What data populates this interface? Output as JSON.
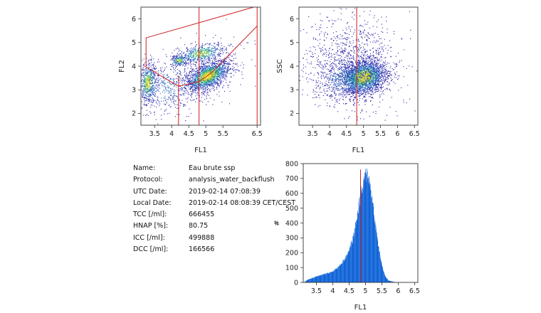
{
  "chart_data": [
    {
      "type": "heatmap",
      "xlabel": "FL1",
      "ylabel": "FL2",
      "xlim": [
        3.1,
        6.6
      ],
      "ylim": [
        1.5,
        6.5
      ],
      "xticks": [
        "3.5",
        "4",
        "4.5",
        "5",
        "5.5",
        "6.5"
      ],
      "yticks": [
        "2",
        "3",
        "4",
        "5",
        "6"
      ],
      "gates": [
        {
          "name": "vertical-4.2",
          "points": [
            [
              4.2,
              1.5
            ],
            [
              4.2,
              3.6
            ]
          ]
        },
        {
          "name": "vertical-4.8",
          "points": [
            [
              4.8,
              1.5
            ],
            [
              4.8,
              6.5
            ]
          ]
        },
        {
          "name": "vertical-6.5",
          "points": [
            [
              6.5,
              1.5
            ],
            [
              6.5,
              6.5
            ]
          ]
        },
        {
          "name": "upper-gate",
          "points": [
            [
              3.25,
              4.0
            ],
            [
              3.25,
              5.2
            ],
            [
              6.4,
              6.5
            ]
          ]
        },
        {
          "name": "lower-gate",
          "points": [
            [
              3.2,
              4.0
            ],
            [
              4.2,
              3.15
            ],
            [
              4.8,
              3.35
            ],
            [
              5.15,
              3.7
            ],
            [
              6.5,
              5.7
            ]
          ]
        }
      ]
    },
    {
      "type": "heatmap",
      "xlabel": "FL1",
      "ylabel": "SSC",
      "xlim": [
        3.1,
        6.6
      ],
      "ylim": [
        1.5,
        6.5
      ],
      "xticks": [
        "3.5",
        "4",
        "4.5",
        "5",
        "5.5",
        "6",
        "6.5"
      ],
      "yticks": [
        "2",
        "3",
        "4",
        "5",
        "6"
      ],
      "gates": [
        {
          "name": "vertical-4.8",
          "points": [
            [
              4.8,
              1.5
            ],
            [
              4.8,
              6.5
            ]
          ]
        }
      ]
    },
    {
      "type": "bar",
      "xlabel": "FL1",
      "ylabel": "#",
      "xlim": [
        3.1,
        6.6
      ],
      "ylim": [
        0,
        800
      ],
      "xticks": [
        "3.5",
        "4",
        "4.5",
        "5",
        "5.5",
        "6",
        "6.5"
      ],
      "yticks": [
        "0",
        "100",
        "200",
        "300",
        "400",
        "500",
        "600",
        "700",
        "800"
      ],
      "marker_x": 4.85,
      "profile": {
        "x": [
          3.2,
          3.5,
          3.8,
          4.0,
          4.2,
          4.4,
          4.6,
          4.7,
          4.8,
          4.9,
          5.0,
          5.05,
          5.1,
          5.2,
          5.3,
          5.4,
          5.5,
          5.6,
          5.7,
          5.9
        ],
        "y": [
          15,
          40,
          60,
          75,
          110,
          170,
          280,
          390,
          530,
          630,
          720,
          740,
          700,
          560,
          380,
          230,
          110,
          40,
          12,
          2
        ]
      }
    }
  ],
  "info": [
    {
      "key": "Name:",
      "value": "Eau brute ssp"
    },
    {
      "key": "Protocol:",
      "value": "analysis_water_backflush"
    },
    {
      "key": "UTC Date:",
      "value": "2019-02-14 07:08:39"
    },
    {
      "key": "Local Date:",
      "value": "2019-02-14 08:08:39 CET/CEST"
    },
    {
      "key": "TCC [/ml]:",
      "value": "666455"
    },
    {
      "key": "HNAP [%]:",
      "value": "80.75"
    },
    {
      "key": "ICC [/ml]:",
      "value": "499888"
    },
    {
      "key": "DCC [/ml]:",
      "value": "166566"
    }
  ]
}
